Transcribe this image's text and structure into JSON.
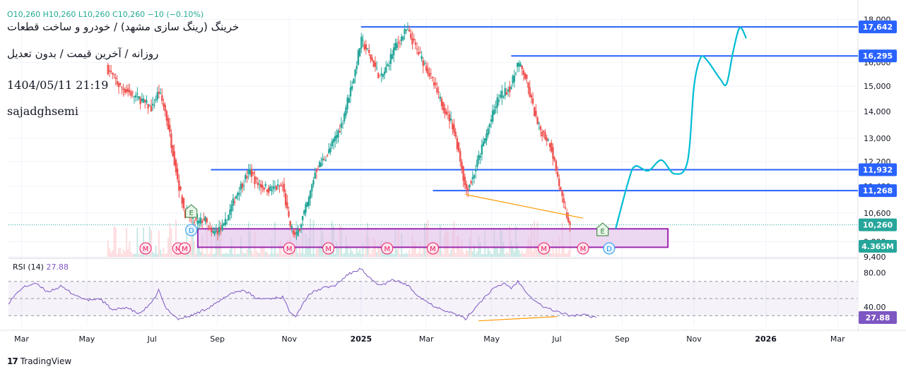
{
  "header": {
    "ohlc_text": "O10,260 H10,260 L10,260 C10,260 −10 (−0.10%)",
    "title": "خرینگ (رینگ سازی مشهد) / خودرو و ساخت قطعات",
    "subtitle": "روزانه / آخرین قیمت / بدون تعدیل",
    "datetime": "1404/05/11 21:19",
    "author": "sajadghsemi"
  },
  "footer": {
    "brand": "TradingView",
    "logo": "17"
  },
  "colors": {
    "up": "#26a69a",
    "down": "#ef5350",
    "level_line": "#2962ff",
    "projection": "#00bcd4",
    "zone_border": "#9c27b0",
    "zone_fill": "#e1bee7",
    "rsi": "#7e57c2",
    "divergence": "#ff9800",
    "volume": "#b2dfdb"
  },
  "chart_data": [
    {
      "type": "candlestick",
      "name": "price",
      "y_scale": "log",
      "ylim": [
        9400,
        18200
      ],
      "y_ticks": [
        {
          "value": 18000,
          "label": "18,000"
        },
        {
          "value": 16000,
          "label": "16,000"
        },
        {
          "value": 15000,
          "label": "15,000"
        },
        {
          "value": 14000,
          "label": "14,000"
        },
        {
          "value": 13000,
          "label": "13,000"
        },
        {
          "value": 12200,
          "label": "12,200"
        },
        {
          "value": 11400,
          "label": "11,400"
        },
        {
          "value": 10600,
          "label": "10,600"
        },
        {
          "value": 9800,
          "label": "9,800"
        },
        {
          "value": 9400,
          "label": "9,400"
        }
      ],
      "x_ticks": [
        "Mar",
        "May",
        "Jul",
        "Sep",
        "Nov",
        "2025",
        "Mar",
        "May",
        "Jul",
        "Sep",
        "Nov",
        "2026",
        "Mar"
      ],
      "x_range": [
        0,
        130
      ],
      "x_tick_positions": [
        2,
        12,
        22,
        32,
        43,
        54,
        64,
        74,
        84,
        94,
        105,
        116,
        127
      ],
      "last_index": 86,
      "levels": [
        {
          "value": 17642,
          "label": "17,642",
          "from": 54
        },
        {
          "value": 16295,
          "label": "16,295",
          "from": 77
        },
        {
          "value": 11932,
          "label": "11,932",
          "from": 31
        },
        {
          "value": 11268,
          "label": "11,268",
          "from": 65
        }
      ],
      "last_price": {
        "value": 10260,
        "label": "10,260"
      },
      "volume_label": "4.365M",
      "zone": {
        "x_from": 29,
        "x_to": 101,
        "y_top": 10150,
        "y_bottom": 9650
      },
      "anchor_points": [
        {
          "x": 15,
          "y": 15800
        },
        {
          "x": 17,
          "y": 15000
        },
        {
          "x": 20,
          "y": 14500
        },
        {
          "x": 22,
          "y": 14100
        },
        {
          "x": 23,
          "y": 14800
        },
        {
          "x": 24,
          "y": 14000
        },
        {
          "x": 26,
          "y": 11500
        },
        {
          "x": 27,
          "y": 10600
        },
        {
          "x": 29,
          "y": 10300
        },
        {
          "x": 30,
          "y": 10450
        },
        {
          "x": 31,
          "y": 10000
        },
        {
          "x": 33,
          "y": 10200
        },
        {
          "x": 35,
          "y": 11200
        },
        {
          "x": 37,
          "y": 11900
        },
        {
          "x": 38,
          "y": 11500
        },
        {
          "x": 40,
          "y": 11300
        },
        {
          "x": 42,
          "y": 11400
        },
        {
          "x": 43,
          "y": 10300
        },
        {
          "x": 44,
          "y": 9900
        },
        {
          "x": 46,
          "y": 11000
        },
        {
          "x": 47,
          "y": 11900
        },
        {
          "x": 49,
          "y": 12500
        },
        {
          "x": 51,
          "y": 13500
        },
        {
          "x": 53,
          "y": 15500
        },
        {
          "x": 54,
          "y": 17000
        },
        {
          "x": 55,
          "y": 16500
        },
        {
          "x": 57,
          "y": 15300
        },
        {
          "x": 58,
          "y": 15800
        },
        {
          "x": 59,
          "y": 16600
        },
        {
          "x": 61,
          "y": 17500
        },
        {
          "x": 63,
          "y": 16300
        },
        {
          "x": 64,
          "y": 15800
        },
        {
          "x": 66,
          "y": 14500
        },
        {
          "x": 68,
          "y": 13500
        },
        {
          "x": 69,
          "y": 12500
        },
        {
          "x": 70,
          "y": 11300
        },
        {
          "x": 71,
          "y": 11600
        },
        {
          "x": 73,
          "y": 13000
        },
        {
          "x": 75,
          "y": 14500
        },
        {
          "x": 77,
          "y": 15000
        },
        {
          "x": 78,
          "y": 16000
        },
        {
          "x": 79,
          "y": 15500
        },
        {
          "x": 80,
          "y": 14500
        },
        {
          "x": 81,
          "y": 13500
        },
        {
          "x": 83,
          "y": 12800
        },
        {
          "x": 84,
          "y": 11800
        },
        {
          "x": 85,
          "y": 10800
        },
        {
          "x": 86,
          "y": 10260
        }
      ],
      "event_markers": [
        {
          "x": 28,
          "kind": "E"
        },
        {
          "x": 28,
          "kind": "D"
        },
        {
          "x": 21,
          "kind": "M"
        },
        {
          "x": 26,
          "kind": "M"
        },
        {
          "x": 27,
          "kind": "M"
        },
        {
          "x": 43,
          "kind": "M"
        },
        {
          "x": 49,
          "kind": "M"
        },
        {
          "x": 58,
          "kind": "M"
        },
        {
          "x": 65,
          "kind": "M"
        },
        {
          "x": 82,
          "kind": "M"
        },
        {
          "x": 88,
          "kind": "M"
        },
        {
          "x": 91,
          "kind": "E"
        },
        {
          "x": 92,
          "kind": "D"
        }
      ],
      "projection": [
        {
          "x": 93,
          "y": 10150
        },
        {
          "x": 95,
          "y": 11600
        },
        {
          "x": 96,
          "y": 12050
        },
        {
          "x": 98,
          "y": 11900
        },
        {
          "x": 100,
          "y": 12250
        },
        {
          "x": 102,
          "y": 11800
        },
        {
          "x": 104,
          "y": 12200
        },
        {
          "x": 105,
          "y": 15000
        },
        {
          "x": 106,
          "y": 16200
        },
        {
          "x": 107,
          "y": 16100
        },
        {
          "x": 109,
          "y": 15300
        },
        {
          "x": 110,
          "y": 15100
        },
        {
          "x": 111,
          "y": 16500
        },
        {
          "x": 112,
          "y": 17600
        },
        {
          "x": 113,
          "y": 17100
        }
      ],
      "divergence": [
        {
          "x": 70,
          "y": 11150
        },
        {
          "x": 88,
          "y": 10450
        }
      ]
    },
    {
      "type": "line",
      "name": "RSI (14)",
      "value_label": "27.88",
      "ylim": [
        18,
        92
      ],
      "y_ticks": [
        {
          "value": 80,
          "label": "80.00"
        },
        {
          "value": 40,
          "label": "40.00"
        }
      ],
      "band_upper": 70,
      "band_mid": 50,
      "band_lower": 30,
      "last_value": 27.88,
      "anchor_points": [
        {
          "x": 0,
          "y": 45
        },
        {
          "x": 2,
          "y": 62
        },
        {
          "x": 4,
          "y": 68
        },
        {
          "x": 6,
          "y": 58
        },
        {
          "x": 8,
          "y": 64
        },
        {
          "x": 10,
          "y": 55
        },
        {
          "x": 12,
          "y": 48
        },
        {
          "x": 14,
          "y": 50
        },
        {
          "x": 16,
          "y": 36
        },
        {
          "x": 18,
          "y": 40
        },
        {
          "x": 20,
          "y": 32
        },
        {
          "x": 22,
          "y": 45
        },
        {
          "x": 23,
          "y": 60
        },
        {
          "x": 24,
          "y": 40
        },
        {
          "x": 26,
          "y": 26
        },
        {
          "x": 28,
          "y": 30
        },
        {
          "x": 30,
          "y": 37
        },
        {
          "x": 32,
          "y": 45
        },
        {
          "x": 34,
          "y": 56
        },
        {
          "x": 36,
          "y": 60
        },
        {
          "x": 38,
          "y": 50
        },
        {
          "x": 40,
          "y": 50
        },
        {
          "x": 42,
          "y": 52
        },
        {
          "x": 43,
          "y": 36
        },
        {
          "x": 44,
          "y": 30
        },
        {
          "x": 46,
          "y": 55
        },
        {
          "x": 48,
          "y": 62
        },
        {
          "x": 50,
          "y": 65
        },
        {
          "x": 52,
          "y": 78
        },
        {
          "x": 54,
          "y": 85
        },
        {
          "x": 55,
          "y": 75
        },
        {
          "x": 57,
          "y": 65
        },
        {
          "x": 59,
          "y": 72
        },
        {
          "x": 61,
          "y": 66
        },
        {
          "x": 63,
          "y": 52
        },
        {
          "x": 65,
          "y": 42
        },
        {
          "x": 67,
          "y": 36
        },
        {
          "x": 69,
          "y": 30
        },
        {
          "x": 70,
          "y": 26
        },
        {
          "x": 72,
          "y": 44
        },
        {
          "x": 74,
          "y": 60
        },
        {
          "x": 76,
          "y": 68
        },
        {
          "x": 77,
          "y": 62
        },
        {
          "x": 78,
          "y": 70
        },
        {
          "x": 80,
          "y": 52
        },
        {
          "x": 82,
          "y": 40
        },
        {
          "x": 84,
          "y": 35
        },
        {
          "x": 86,
          "y": 30
        },
        {
          "x": 88,
          "y": 31
        },
        {
          "x": 90,
          "y": 28
        }
      ],
      "divergence": [
        {
          "x": 72,
          "y": 24
        },
        {
          "x": 84,
          "y": 29
        }
      ]
    }
  ]
}
